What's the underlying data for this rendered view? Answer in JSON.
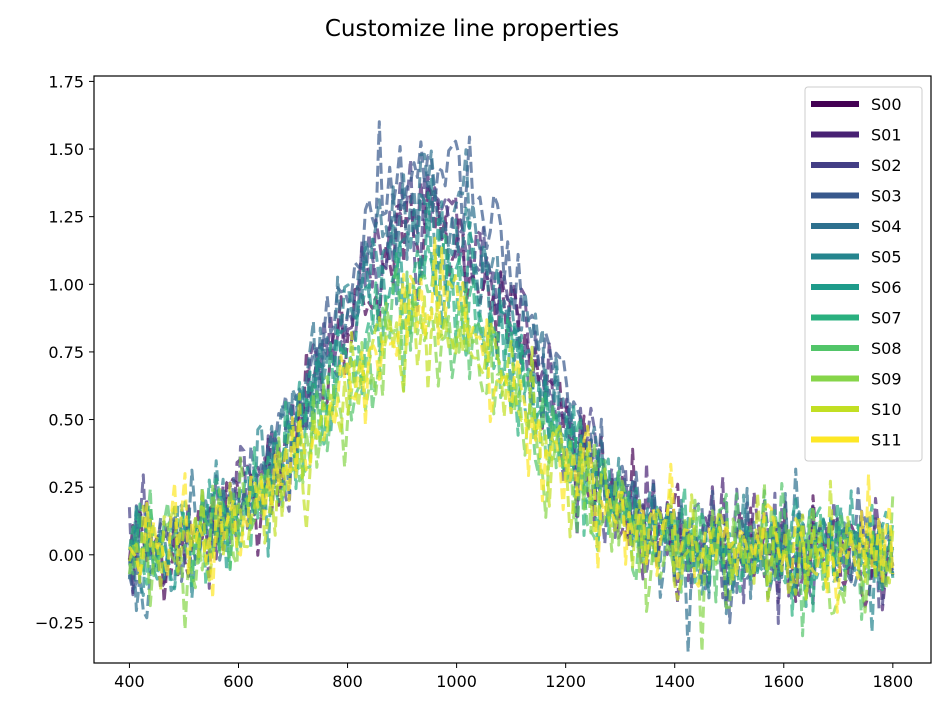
{
  "chart_data": {
    "type": "line",
    "title": "Customize line properties",
    "xlabel": "",
    "ylabel": "",
    "xlim": [
      335,
      1870
    ],
    "ylim": [
      -0.4,
      1.77
    ],
    "x_ticks": [
      "400",
      "600",
      "800",
      "1000",
      "1200",
      "1400",
      "1600",
      "1800"
    ],
    "y_ticks": [
      "−0.25",
      "0.00",
      "0.25",
      "0.50",
      "0.75",
      "1.00",
      "1.25",
      "1.50",
      "1.75"
    ],
    "x_tick_values": [
      400,
      600,
      800,
      1000,
      1200,
      1400,
      1600,
      1800
    ],
    "y_tick_values": [
      -0.25,
      0,
      0.25,
      0.5,
      0.75,
      1.0,
      1.25,
      1.5,
      1.75
    ],
    "x_range": [
      400,
      1800
    ],
    "peak_center": 950,
    "peak_width": 180,
    "noise": 0.1,
    "line_style": "dashed",
    "grid": false,
    "legend_position": "top-right",
    "series": [
      {
        "name": "S00",
        "color": "#440154",
        "amplitude": 1.2
      },
      {
        "name": "S01",
        "color": "#482173",
        "amplitude": 1.3
      },
      {
        "name": "S02",
        "color": "#433e85",
        "amplitude": 1.25
      },
      {
        "name": "S03",
        "color": "#38588c",
        "amplitude": 1.45
      },
      {
        "name": "S04",
        "color": "#2d708e",
        "amplitude": 1.35
      },
      {
        "name": "S05",
        "color": "#25858e",
        "amplitude": 1.2
      },
      {
        "name": "S06",
        "color": "#1e9b8a",
        "amplitude": 1.1
      },
      {
        "name": "S07",
        "color": "#2ab07f",
        "amplitude": 1.0
      },
      {
        "name": "S08",
        "color": "#52c569",
        "amplitude": 0.9
      },
      {
        "name": "S09",
        "color": "#86d549",
        "amplitude": 0.85
      },
      {
        "name": "S10",
        "color": "#c2df23",
        "amplitude": 0.85
      },
      {
        "name": "S11",
        "color": "#fde725",
        "amplitude": 0.9
      }
    ]
  }
}
